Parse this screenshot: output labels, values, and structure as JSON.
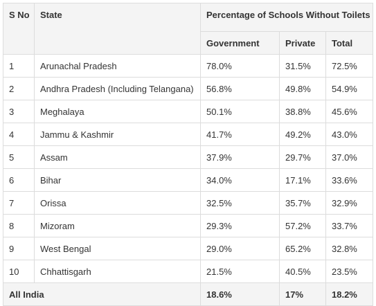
{
  "table": {
    "headers": {
      "sno": "S No",
      "state": "State",
      "group": "Percentage of Schools Without Toilets",
      "government": "Government",
      "private": "Private",
      "total": "Total"
    },
    "rows": [
      {
        "sno": "1",
        "state": "Arunachal Pradesh",
        "government": "78.0%",
        "private": "31.5%",
        "total": "72.5%"
      },
      {
        "sno": "2",
        "state": "Andhra Pradesh (Including Telangana)",
        "government": "56.8%",
        "private": "49.8%",
        "total": "54.9%"
      },
      {
        "sno": "3",
        "state": "Meghalaya",
        "government": "50.1%",
        "private": "38.8%",
        "total": "45.6%"
      },
      {
        "sno": "4",
        "state": "Jammu & Kashmir",
        "government": "41.7%",
        "private": "49.2%",
        "total": "43.0%"
      },
      {
        "sno": "5",
        "state": "Assam",
        "government": "37.9%",
        "private": "29.7%",
        "total": "37.0%"
      },
      {
        "sno": "6",
        "state": "Bihar",
        "government": "34.0%",
        "private": "17.1%",
        "total": "33.6%"
      },
      {
        "sno": "7",
        "state": "Orissa",
        "government": "32.5%",
        "private": "35.7%",
        "total": "32.9%"
      },
      {
        "sno": "8",
        "state": "Mizoram",
        "government": "29.3%",
        "private": "57.2%",
        "total": "33.7%"
      },
      {
        "sno": "9",
        "state": "West Bengal",
        "government": "29.0%",
        "private": "65.2%",
        "total": "32.8%"
      },
      {
        "sno": "10",
        "state": "Chhattisgarh",
        "government": "21.5%",
        "private": "40.5%",
        "total": "23.5%"
      }
    ],
    "footer": {
      "label": "All India",
      "government": "18.6%",
      "private": "17%",
      "total": "18.2%"
    }
  }
}
